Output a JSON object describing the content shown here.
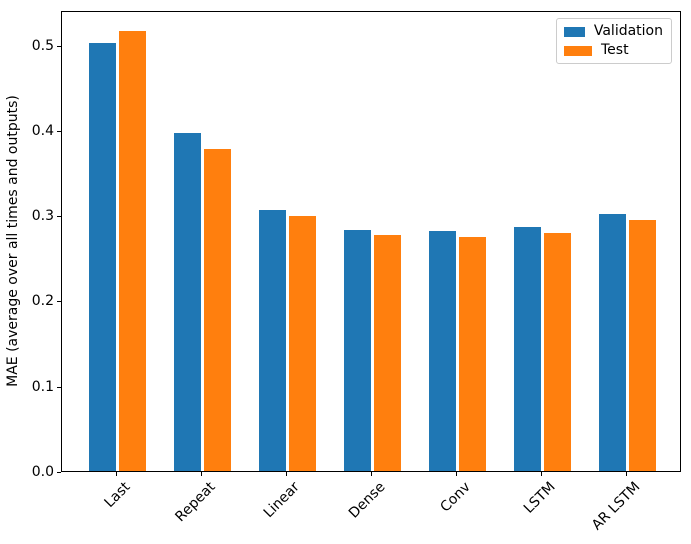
{
  "chart_data": {
    "type": "bar",
    "categories": [
      "Last",
      "Repeat",
      "Linear",
      "Dense",
      "Conv",
      "LSTM",
      "AR LSTM"
    ],
    "series": [
      {
        "name": "Validation",
        "color": "#1f77b4",
        "values": [
          0.502,
          0.396,
          0.306,
          0.283,
          0.281,
          0.286,
          0.301
        ]
      },
      {
        "name": "Test",
        "color": "#ff7f0e",
        "values": [
          0.516,
          0.378,
          0.299,
          0.277,
          0.274,
          0.279,
          0.294
        ]
      }
    ],
    "title": "",
    "xlabel": "",
    "ylabel": "MAE (average over all times and outputs)",
    "yticks": [
      0.0,
      0.1,
      0.2,
      0.3,
      0.4,
      0.5
    ],
    "ytick_labels": [
      "0.0",
      "0.1",
      "0.2",
      "0.3",
      "0.4",
      "0.5"
    ],
    "ylim": [
      0,
      0.5405
    ],
    "xtick_rotation_deg": 45,
    "grid": false,
    "legend_position": "upper right",
    "background_color": "#ffffff",
    "spine_color": "#000000",
    "legend_border_color": "#cccccc"
  }
}
